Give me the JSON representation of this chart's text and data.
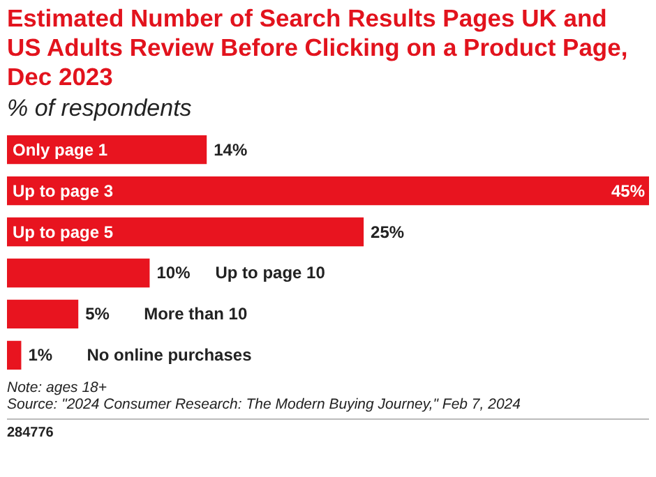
{
  "chart_data": {
    "type": "bar",
    "orientation": "horizontal",
    "title": "Estimated Number of Search Results Pages UK and US Adults Review Before Clicking on a Product Page, Dec 2023",
    "subtitle": "% of respondents",
    "categories": [
      "Only page 1",
      "Up to page 3",
      "Up to page 5",
      "Up to page 10",
      "More than 10",
      "No online purchases"
    ],
    "values": [
      14,
      45,
      25,
      10,
      5,
      1
    ],
    "value_labels": [
      "14%",
      "45%",
      "25%",
      "10%",
      "5%",
      "1%"
    ],
    "color": "#e8141f",
    "annotations": [
      "Note: ages 18+",
      "Source: \"2024 Consumer Research: The Modern Buying Journey,\" Feb 7, 2024",
      "284776"
    ]
  }
}
